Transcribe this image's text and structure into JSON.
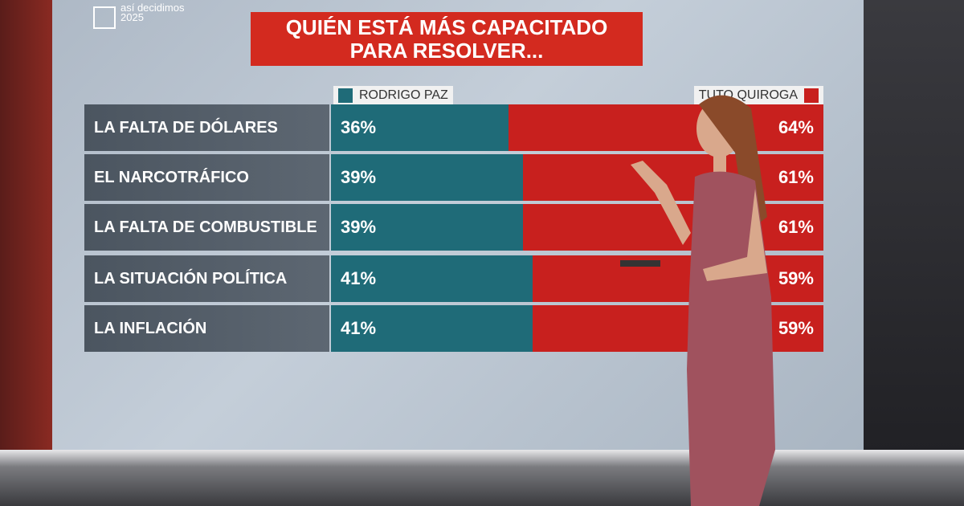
{
  "brand": "así decidimos 2025",
  "chart_data": {
    "type": "stacked-bar-horizontal",
    "title": "QUIÉN ESTÁ MÁS CAPACITADO PARA RESOLVER...",
    "categories": [
      "LA FALTA DE DÓLARES",
      "EL NARCOTRÁFICO",
      "LA FALTA DE COMBUSTIBLE",
      "LA SITUACIÓN POLÍTICA",
      "LA INFLACIÓN"
    ],
    "series": [
      {
        "name": "RODRIGO PAZ",
        "color": "#1f6b78",
        "values": [
          36,
          39,
          39,
          41,
          41
        ],
        "value_labels": [
          "36%",
          "39%",
          "39%",
          "41%",
          "41%"
        ]
      },
      {
        "name": "TUTO QUIROGA",
        "color": "#c8201e",
        "values": [
          64,
          61,
          61,
          59,
          59
        ],
        "value_labels": [
          "64%",
          "61%",
          "61%",
          "59%",
          "59%"
        ]
      }
    ]
  }
}
